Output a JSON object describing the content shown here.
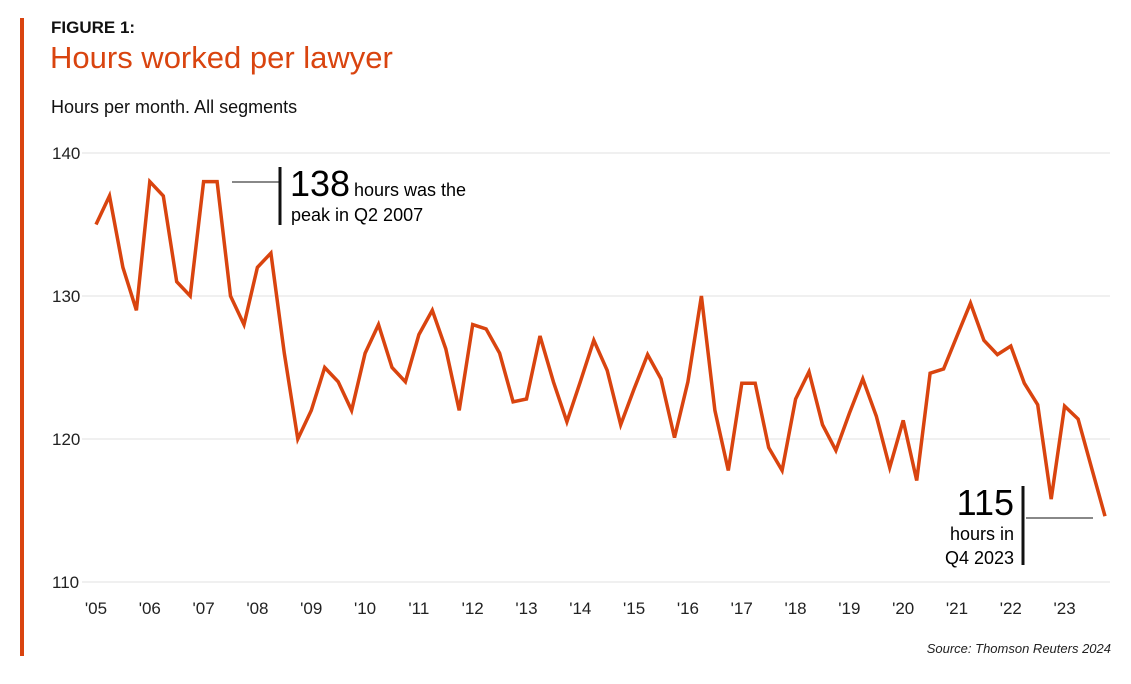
{
  "figure_label": "FIGURE 1:",
  "title": "Hours worked per lawyer",
  "subtitle": "Hours per month. All segments",
  "source": "Source: Thomson Reuters 2024",
  "colors": {
    "line": "#d9440f",
    "accent": "#d9440f",
    "grid": "#e0e0e0"
  },
  "chart_data": {
    "type": "line",
    "title": "Hours worked per lawyer",
    "ylabel": "Hours per month",
    "ylim": [
      110,
      140
    ],
    "yticks": [
      110,
      120,
      130,
      140
    ],
    "xticks": [
      "'05",
      "'06",
      "'07",
      "'08",
      "'09",
      "'10",
      "'11",
      "'12",
      "'13",
      "'14",
      "'15",
      "'16",
      "'17",
      "'18",
      "'19",
      "'20",
      "'21",
      "'22",
      "'23"
    ],
    "grid": true,
    "x_start": "2005 Q1",
    "x_end": "2023 Q4",
    "frequency": "quarterly",
    "values": [
      135,
      137,
      132,
      129,
      138,
      137,
      131,
      130,
      138,
      138,
      130,
      128,
      132,
      133,
      126,
      120,
      122,
      125,
      124,
      122,
      126,
      128,
      125,
      124,
      127.3,
      129,
      126.3,
      122,
      128,
      127.7,
      126,
      122.6,
      122.8,
      127.2,
      124,
      121.2,
      124,
      126.9,
      124.8,
      121,
      123.5,
      125.9,
      124.2,
      120.1,
      124,
      130,
      122,
      117.8,
      123.9,
      123.9,
      119.4,
      117.8,
      122.8,
      124.7,
      121,
      119.2,
      121.8,
      124.2,
      121.6,
      118,
      121.3,
      117.1,
      124.6,
      124.9,
      127.2,
      129.5,
      126.9,
      125.9,
      126.5,
      123.9,
      122.4,
      115.8,
      122.3,
      121.4,
      118,
      114.6
    ],
    "annotations": [
      {
        "value": "138",
        "text1": "hours was the",
        "text2": "peak in Q2 2007"
      },
      {
        "value": "115",
        "text1": "hours in",
        "text2": "Q4 2023"
      }
    ]
  }
}
